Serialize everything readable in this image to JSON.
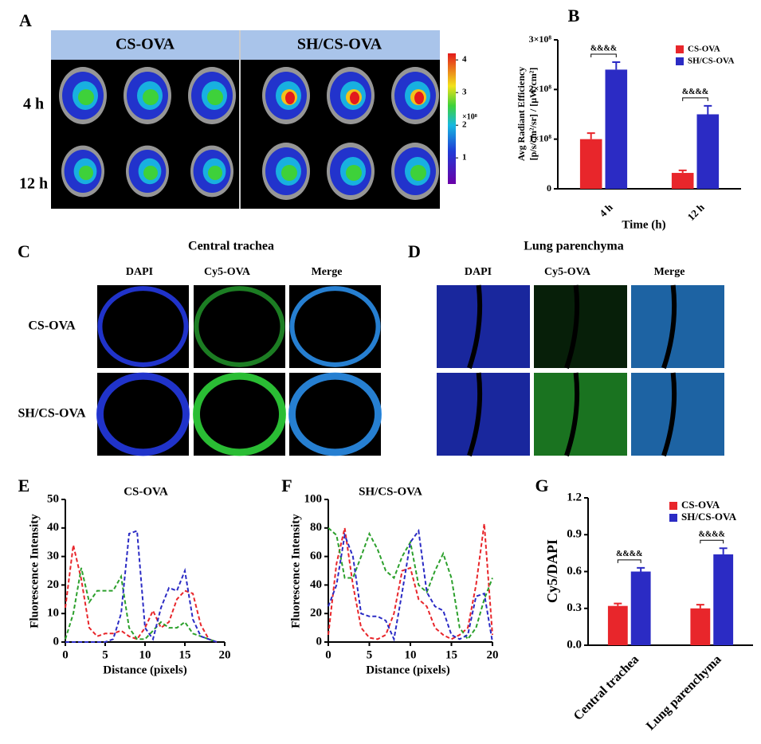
{
  "panel_a": {
    "label": "A",
    "groups": [
      "CS-OVA",
      "SH/CS-OVA"
    ],
    "group_colors": [
      "#e8262b",
      "#2b3bc4"
    ],
    "rows": [
      "4 h",
      "12 h"
    ],
    "colorbar": {
      "lim": [
        0.2,
        4.2
      ],
      "ticks": [
        1,
        2,
        3,
        4
      ],
      "unit": "×10⁸"
    }
  },
  "panel_c": {
    "label": "C",
    "title": "Central trachea",
    "columns": [
      "DAPI",
      "Cy5-OVA",
      "Merge"
    ],
    "rows": [
      "CS-OVA",
      "SH/CS-OVA"
    ]
  },
  "panel_d": {
    "label": "D",
    "title": "Lung parenchyma",
    "columns": [
      "DAPI",
      "Cy5-OVA",
      "Merge"
    ]
  },
  "chart_data": [
    {
      "type": "bar",
      "panel_label": "B",
      "categories": [
        "4 h",
        "12 h"
      ],
      "series": [
        {
          "name": "CS-OVA",
          "color": "#e8262b",
          "values": [
            100000000,
            32000000
          ],
          "errors": [
            12000000,
            5000000
          ]
        },
        {
          "name": "SH/CS-OVA",
          "color": "#2b2bc4",
          "values": [
            240000000,
            150000000
          ],
          "errors": [
            15000000,
            17000000
          ]
        }
      ],
      "ylim": [
        0,
        300000000
      ],
      "yticks": [
        0,
        {
          "value": 100000000,
          "label": "1×10⁸"
        },
        {
          "value": 200000000,
          "label": "2×10⁸"
        },
        {
          "value": 300000000,
          "label": "3×10⁸"
        }
      ],
      "y_label": [
        "Avg Radiant Efficiency",
        "[p/s/cm²/sr] / [µW/cm²]"
      ],
      "x_label": "Time (h)",
      "annotations": [
        "&&&&",
        "&&&&"
      ]
    },
    {
      "type": "line",
      "panel_label": "E",
      "title": "CS-OVA",
      "title_color": "#e8262b",
      "x": [
        0,
        1,
        2,
        3,
        4,
        5,
        6,
        7,
        8,
        9,
        10,
        11,
        12,
        13,
        14,
        15,
        16,
        17,
        18,
        19
      ],
      "series": [
        {
          "color": "#e8262b",
          "values": [
            12,
            34,
            22,
            5,
            2,
            3,
            3,
            4,
            2,
            1,
            5,
            11,
            5,
            7,
            15,
            18,
            17,
            6,
            1,
            0
          ]
        },
        {
          "color": "#2ca02c",
          "values": [
            1,
            10,
            26,
            14,
            18,
            18,
            18,
            23,
            5,
            1,
            1,
            4,
            7,
            5,
            5,
            7,
            3,
            2,
            1,
            0
          ]
        },
        {
          "color": "#2b2bc4",
          "values": [
            0,
            0,
            0,
            0,
            0,
            0,
            1,
            10,
            38,
            39,
            5,
            1,
            12,
            19,
            18,
            25,
            8,
            2,
            1,
            0
          ]
        }
      ],
      "xlim": [
        0,
        20
      ],
      "xticks": [
        0,
        5,
        10,
        15,
        20
      ],
      "ylim": [
        0,
        50
      ],
      "yticks": [
        0,
        10,
        20,
        30,
        40,
        50
      ],
      "x_label": "Distance (pixels)",
      "y_label": "Fluorescence Intensity"
    },
    {
      "type": "line",
      "panel_label": "F",
      "title": "SH/CS-OVA",
      "title_color": "#2b2bc4",
      "x": [
        0,
        1,
        2,
        3,
        4,
        5,
        6,
        7,
        8,
        9,
        10,
        11,
        12,
        13,
        14,
        15,
        16,
        17,
        18,
        19,
        20
      ],
      "series": [
        {
          "color": "#e8262b",
          "values": [
            5,
            55,
            80,
            40,
            10,
            3,
            2,
            5,
            20,
            50,
            52,
            30,
            25,
            10,
            5,
            2,
            5,
            10,
            40,
            83,
            5
          ]
        },
        {
          "color": "#2ca02c",
          "values": [
            80,
            75,
            45,
            45,
            60,
            76,
            65,
            50,
            45,
            60,
            70,
            40,
            35,
            50,
            62,
            45,
            10,
            2,
            10,
            30,
            45
          ]
        },
        {
          "color": "#2b2bc4",
          "values": [
            25,
            40,
            75,
            60,
            20,
            18,
            18,
            15,
            2,
            35,
            70,
            78,
            35,
            25,
            22,
            5,
            2,
            5,
            32,
            34,
            0
          ]
        }
      ],
      "xlim": [
        0,
        20
      ],
      "xticks": [
        0,
        5,
        10,
        15,
        20
      ],
      "ylim": [
        0,
        100
      ],
      "yticks": [
        0,
        20,
        40,
        60,
        80,
        100
      ],
      "x_label": "Distance (pixels)",
      "y_label": "Fluorescence Intensity"
    },
    {
      "type": "bar",
      "panel_label": "G",
      "categories": [
        "Central trachea",
        "Lung parenchyma"
      ],
      "series": [
        {
          "name": "CS-OVA",
          "color": "#e8262b",
          "values": [
            0.32,
            0.3
          ],
          "errors": [
            0.02,
            0.03
          ]
        },
        {
          "name": "SH/CS-OVA",
          "color": "#2b2bc4",
          "values": [
            0.6,
            0.74
          ],
          "errors": [
            0.03,
            0.05
          ]
        }
      ],
      "ylim": [
        0,
        1.2
      ],
      "yticks": [
        {
          "value": 0,
          "label": "0.0"
        },
        0.3,
        0.6,
        0.9,
        1.2
      ],
      "y_label": "Cy5/DAPI",
      "annotations": [
        "&&&&",
        "&&&&"
      ]
    }
  ]
}
